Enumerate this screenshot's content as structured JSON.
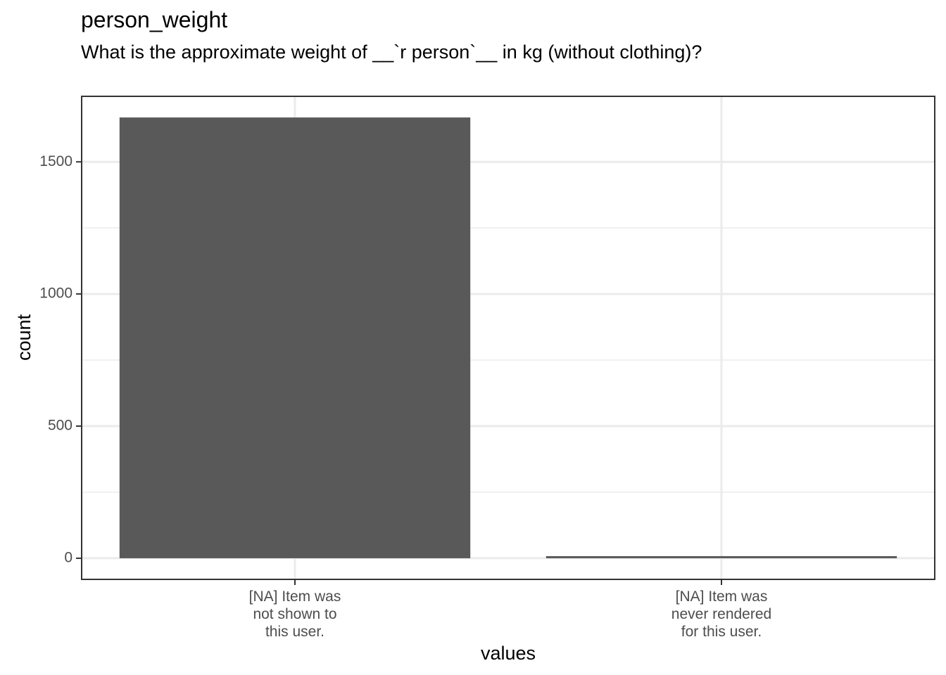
{
  "chart_data": {
    "type": "bar",
    "title": "person_weight",
    "subtitle": "What is the approximate weight of __`r person`__ in kg (without clothing)?",
    "xlabel": "values",
    "ylabel": "count",
    "categories": [
      [
        "[NA] Item was",
        "not shown to",
        "this user."
      ],
      [
        "[NA] Item was",
        "never rendered",
        "for this user."
      ]
    ],
    "values": [
      1668,
      8
    ],
    "ylim": [
      -80,
      1748
    ],
    "yticks": [
      0,
      500,
      1000,
      1500
    ],
    "grid": true,
    "bar_color": "#595959",
    "grid_color": "#ebebeb",
    "panel_border_color": "#333333"
  }
}
